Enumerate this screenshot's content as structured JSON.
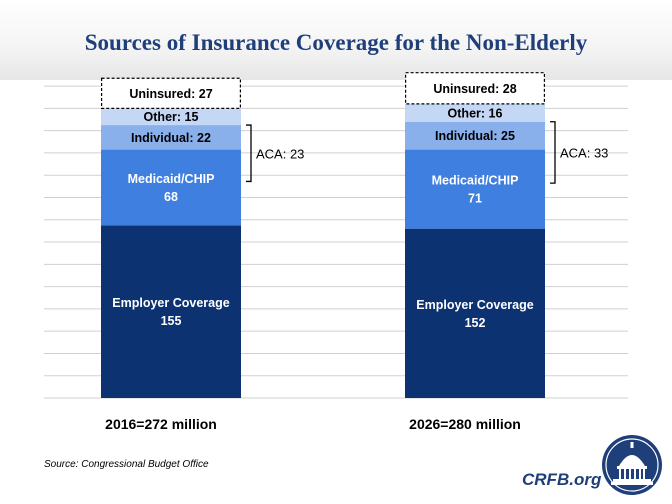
{
  "title": "Sources of Insurance Coverage for the Non-Elderly",
  "source": "Source: Congressional Budget Office",
  "brand": "CRFB.org",
  "colors": {
    "title": "#1f3f7a",
    "employer": "#0d3272",
    "medicaid": "#3f7fe0",
    "individual": "#8ab0ec",
    "other": "#c4d7f5",
    "uninsured_border": "#000000"
  },
  "chart_data": {
    "type": "bar",
    "stacked": true,
    "categories": [
      "2016=272 million",
      "2026=280 million"
    ],
    "series": [
      {
        "name": "Employer Coverage",
        "values": [
          155,
          152
        ],
        "labels": [
          "Employer Coverage\n155",
          "Employer Coverage\n152"
        ]
      },
      {
        "name": "Medicaid/CHIP",
        "values": [
          68,
          71
        ],
        "labels": [
          "Medicaid/CHIP\n68",
          "Medicaid/CHIP\n71"
        ]
      },
      {
        "name": "Individual",
        "values": [
          22,
          25
        ],
        "labels": [
          "Individual: 22",
          "Individual: 25"
        ]
      },
      {
        "name": "Other",
        "values": [
          15,
          16
        ],
        "labels": [
          "Other: 15",
          "Other: 16"
        ]
      },
      {
        "name": "Uninsured",
        "values": [
          27,
          28
        ],
        "labels": [
          "Uninsured: 27",
          "Uninsured: 28"
        ]
      }
    ],
    "annotations": [
      {
        "bar": 0,
        "text": "ACA: 23"
      },
      {
        "bar": 1,
        "text": "ACA: 33"
      }
    ],
    "ylim": [
      0,
      300
    ],
    "grid": true,
    "legend": "none"
  }
}
